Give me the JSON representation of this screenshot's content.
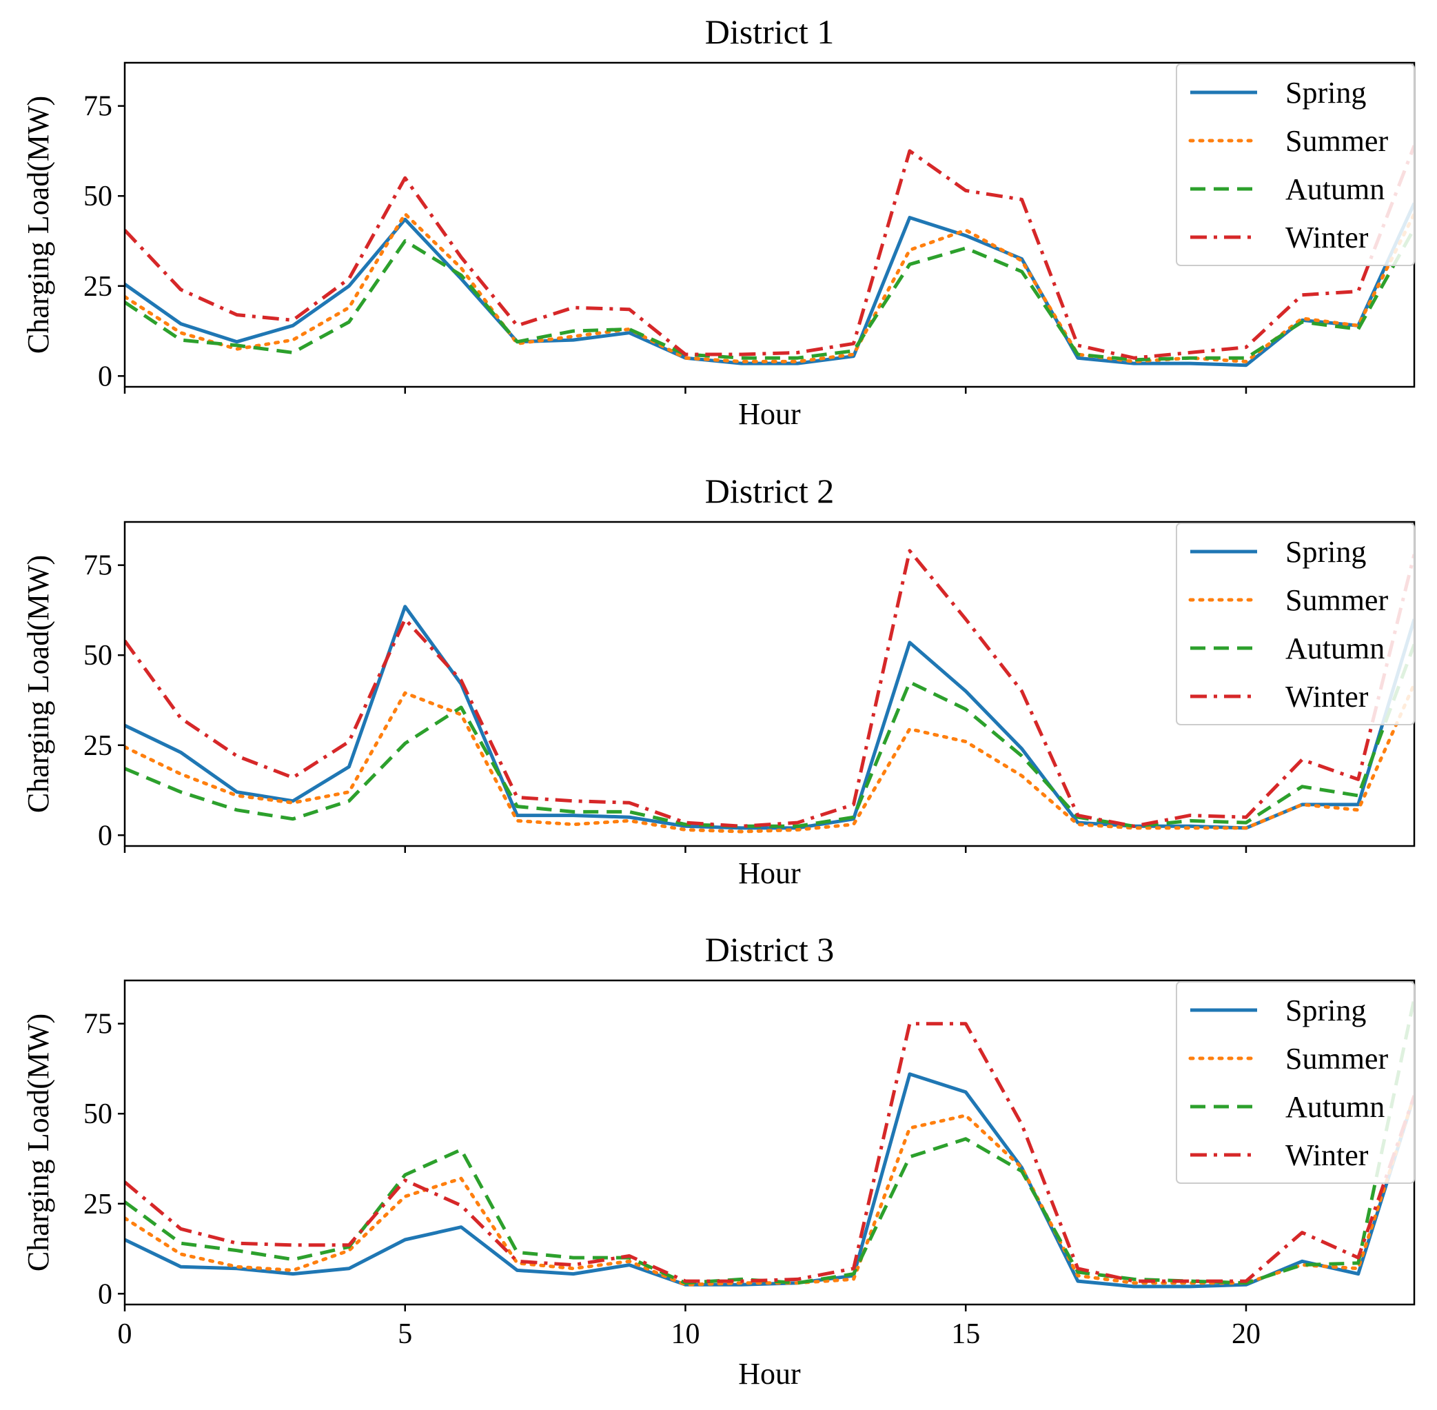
{
  "figure": {
    "colors": {
      "Spring": "#1f77b4",
      "Summer": "#ff7f0e",
      "Autumn": "#2ca02c",
      "Winter": "#d62728"
    },
    "legend_position": "top-right"
  },
  "chart_data": [
    {
      "type": "line",
      "title": "District 1",
      "xlabel": "Hour",
      "ylabel": "Charging Load(MW)",
      "x": [
        0,
        1,
        2,
        3,
        4,
        5,
        6,
        7,
        8,
        9,
        10,
        11,
        12,
        13,
        14,
        15,
        16,
        17,
        18,
        19,
        20,
        21,
        22,
        23
      ],
      "xlim": [
        0,
        23
      ],
      "ylim": [
        -3,
        87
      ],
      "yticks": [
        0,
        25,
        50,
        75
      ],
      "xticks": [
        0,
        5,
        10,
        15,
        20
      ],
      "show_xtick_labels": false,
      "legend": [
        "Spring",
        "Summer",
        "Autumn",
        "Winter"
      ],
      "series": [
        {
          "name": "Spring",
          "style": "solid",
          "values": [
            25.5,
            14.5,
            9.5,
            14,
            25,
            43.5,
            27,
            9.5,
            10,
            12,
            5,
            3.5,
            3.5,
            5.5,
            44,
            39,
            32.5,
            5,
            3.5,
            3.5,
            3,
            15.5,
            14,
            48
          ]
        },
        {
          "name": "Summer",
          "style": "dotted",
          "values": [
            22,
            12,
            7.5,
            10,
            19,
            45,
            30,
            9,
            11,
            13,
            5,
            4,
            4,
            6,
            35,
            40.5,
            32,
            6,
            4,
            5,
            4,
            16,
            14,
            45
          ]
        },
        {
          "name": "Autumn",
          "style": "dashed",
          "values": [
            20.5,
            10,
            8.5,
            6.5,
            15,
            37.5,
            28,
            9.5,
            12.5,
            13,
            6,
            5,
            5,
            7,
            31,
            35.5,
            29,
            6,
            4.5,
            5,
            5,
            15,
            13,
            41
          ]
        },
        {
          "name": "Winter",
          "style": "dashdot",
          "values": [
            40.5,
            24,
            17,
            15.5,
            27,
            55,
            33,
            14,
            19,
            18.5,
            6,
            6,
            6.5,
            9,
            62.5,
            51.5,
            49,
            8.5,
            5,
            6.5,
            8,
            22.5,
            23.5,
            64
          ]
        }
      ]
    },
    {
      "type": "line",
      "title": "District 2",
      "xlabel": "Hour",
      "ylabel": "Charging Load(MW)",
      "x": [
        0,
        1,
        2,
        3,
        4,
        5,
        6,
        7,
        8,
        9,
        10,
        11,
        12,
        13,
        14,
        15,
        16,
        17,
        18,
        19,
        20,
        21,
        22,
        23
      ],
      "xlim": [
        0,
        23
      ],
      "ylim": [
        -3,
        87
      ],
      "yticks": [
        0,
        25,
        50,
        75
      ],
      "xticks": [
        0,
        5,
        10,
        15,
        20
      ],
      "show_xtick_labels": false,
      "legend": [
        "Spring",
        "Summer",
        "Autumn",
        "Winter"
      ],
      "series": [
        {
          "name": "Spring",
          "style": "solid",
          "values": [
            30.5,
            23,
            12,
            9.5,
            19,
            63.5,
            42,
            5.5,
            5.5,
            5,
            2.5,
            2,
            2,
            4.5,
            53.5,
            40,
            24,
            3.5,
            2.5,
            2.5,
            2,
            8.5,
            8.5,
            60
          ]
        },
        {
          "name": "Summer",
          "style": "dotted",
          "values": [
            24.5,
            17,
            11,
            9,
            12,
            39.5,
            33.5,
            4,
            3,
            4,
            1.5,
            1,
            1.5,
            3,
            29.5,
            26,
            16.5,
            3,
            2,
            2,
            2,
            8.5,
            7,
            42
          ]
        },
        {
          "name": "Autumn",
          "style": "dashed",
          "values": [
            18.5,
            12,
            7,
            4.5,
            9.5,
            25.5,
            35.5,
            8,
            6.5,
            6.5,
            3,
            2.5,
            2.5,
            5,
            42.5,
            35,
            22,
            5,
            2.5,
            4,
            3.5,
            13.5,
            11,
            53
          ]
        },
        {
          "name": "Winter",
          "style": "dashdot",
          "values": [
            54,
            32.5,
            22,
            16,
            26,
            60,
            43,
            10.5,
            9.5,
            9,
            3.5,
            2.5,
            3.5,
            8.5,
            79,
            60,
            40,
            5.5,
            2.5,
            5.5,
            5,
            21,
            15.5,
            78
          ]
        }
      ]
    },
    {
      "type": "line",
      "title": "District 3",
      "xlabel": "Hour",
      "ylabel": "Charging Load(MW)",
      "x": [
        0,
        1,
        2,
        3,
        4,
        5,
        6,
        7,
        8,
        9,
        10,
        11,
        12,
        13,
        14,
        15,
        16,
        17,
        18,
        19,
        20,
        21,
        22,
        23
      ],
      "xlim": [
        0,
        23
      ],
      "ylim": [
        -3,
        87
      ],
      "yticks": [
        0,
        25,
        50,
        75
      ],
      "xticks": [
        0,
        5,
        10,
        15,
        20
      ],
      "xtick_labels": [
        "0",
        "5",
        "10",
        "15",
        "20"
      ],
      "show_xtick_labels": true,
      "legend": [
        "Spring",
        "Summer",
        "Autumn",
        "Winter"
      ],
      "series": [
        {
          "name": "Spring",
          "style": "solid",
          "values": [
            15,
            7.5,
            7,
            5.5,
            7,
            15,
            18.5,
            6.5,
            5.5,
            8,
            2.5,
            2.5,
            3,
            5,
            61,
            56,
            35,
            3.5,
            2,
            2,
            2.5,
            9,
            5.5,
            55
          ]
        },
        {
          "name": "Summer",
          "style": "dotted",
          "values": [
            21,
            11,
            7.5,
            6.5,
            12,
            27,
            32,
            8.5,
            7,
            9,
            2.5,
            3,
            3,
            4,
            46,
            49.5,
            35,
            5,
            3,
            3,
            3,
            8,
            7,
            55
          ]
        },
        {
          "name": "Autumn",
          "style": "dashed",
          "values": [
            25.5,
            14,
            12,
            9.5,
            13,
            33,
            40,
            11.5,
            10,
            10,
            3,
            4,
            3,
            5.5,
            38,
            43,
            34,
            6,
            4,
            3.5,
            3,
            8,
            8.5,
            82
          ]
        },
        {
          "name": "Winter",
          "style": "dashdot",
          "values": [
            31,
            18,
            14,
            13.5,
            13.5,
            31.5,
            24.5,
            9,
            8,
            10.5,
            3.5,
            3.5,
            4,
            7,
            75,
            75,
            47,
            7,
            3.5,
            3.5,
            3.5,
            17,
            10,
            55
          ]
        }
      ]
    }
  ]
}
